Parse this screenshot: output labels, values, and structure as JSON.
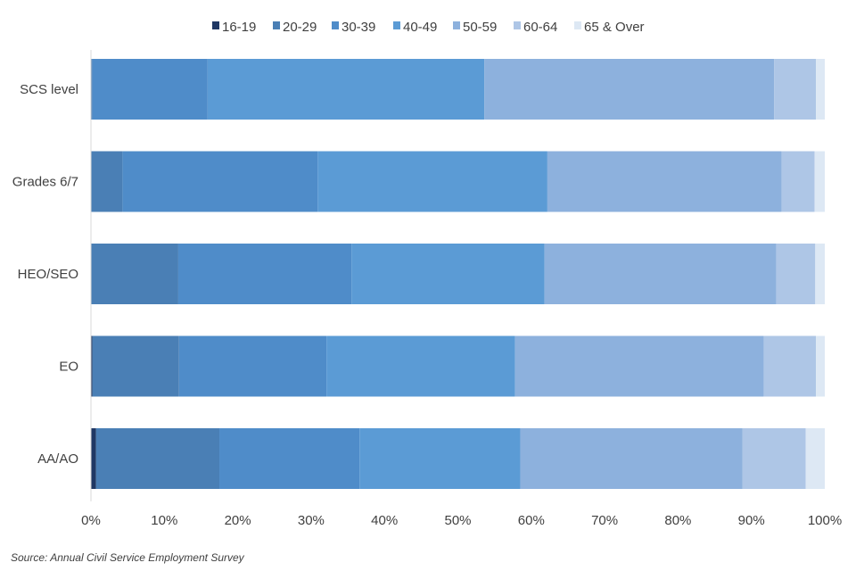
{
  "chart_data": {
    "type": "bar",
    "orientation": "horizontal",
    "stacked": true,
    "categories": [
      "SCS level",
      "Grades 6/7",
      "HEO/SEO",
      "EO",
      "AA/AO"
    ],
    "series": [
      {
        "name": "16-19",
        "color": "#1f3864",
        "values": [
          0.0,
          0.0,
          0.0,
          0.2,
          0.7
        ]
      },
      {
        "name": "20-29",
        "color": "#4a7fb5",
        "values": [
          0.2,
          4.3,
          11.9,
          11.8,
          16.8
        ]
      },
      {
        "name": "30-39",
        "color": "#4f8cc9",
        "values": [
          15.7,
          26.6,
          23.6,
          20.1,
          19.1
        ]
      },
      {
        "name": "40-49",
        "color": "#5b9bd5",
        "values": [
          37.7,
          31.3,
          26.3,
          25.7,
          21.9
        ]
      },
      {
        "name": "50-59",
        "color": "#8db1dd",
        "values": [
          39.5,
          31.9,
          31.6,
          33.9,
          30.3
        ]
      },
      {
        "name": "60-64",
        "color": "#aec6e6",
        "values": [
          5.7,
          4.5,
          5.3,
          7.1,
          8.6
        ]
      },
      {
        "name": "65 & Over",
        "color": "#dde8f4",
        "values": [
          1.2,
          1.4,
          1.3,
          1.2,
          2.6
        ]
      }
    ],
    "xlim": [
      0,
      100
    ],
    "x_ticks": [
      "0%",
      "10%",
      "20%",
      "30%",
      "40%",
      "50%",
      "60%",
      "70%",
      "80%",
      "90%",
      "100%"
    ],
    "legend_position": "top",
    "grid": false
  },
  "source_note": "Source: Annual Civil Service Employment Survey"
}
